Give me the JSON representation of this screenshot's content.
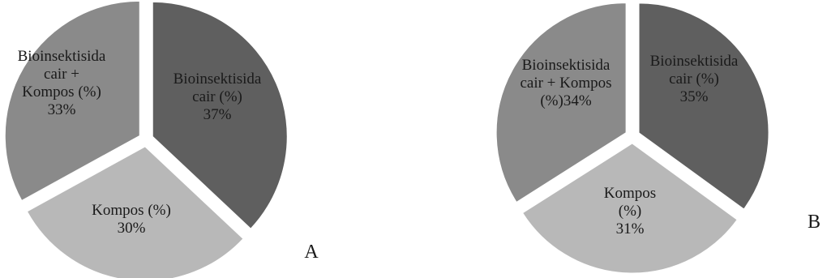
{
  "chart_data": [
    {
      "type": "pie",
      "panel_label": "A",
      "colors": [
        "#5f5f5f",
        "#b8b8b8",
        "#8a8a8a"
      ],
      "slices": [
        {
          "label_lines": [
            "Bioinsektisida",
            "cair (%)",
            "37%"
          ],
          "value": 37
        },
        {
          "label_lines": [
            "Kompos (%)",
            "30%"
          ],
          "value": 30
        },
        {
          "label_lines": [
            "Bioinsektisida",
            "cair +",
            "Kompos (%)",
            "33%"
          ],
          "value": 33
        }
      ]
    },
    {
      "type": "pie",
      "panel_label": "B",
      "colors": [
        "#5f5f5f",
        "#b8b8b8",
        "#8a8a8a"
      ],
      "slices": [
        {
          "label_lines": [
            "Bioinsektisida",
            "cair (%)",
            "35%"
          ],
          "value": 35
        },
        {
          "label_lines": [
            "Kompos",
            "(%)",
            "31%"
          ],
          "value": 31
        },
        {
          "label_lines": [
            "Bioinsektisida",
            "cair + Kompos",
            "(%)34%"
          ],
          "value": 34
        }
      ]
    }
  ]
}
